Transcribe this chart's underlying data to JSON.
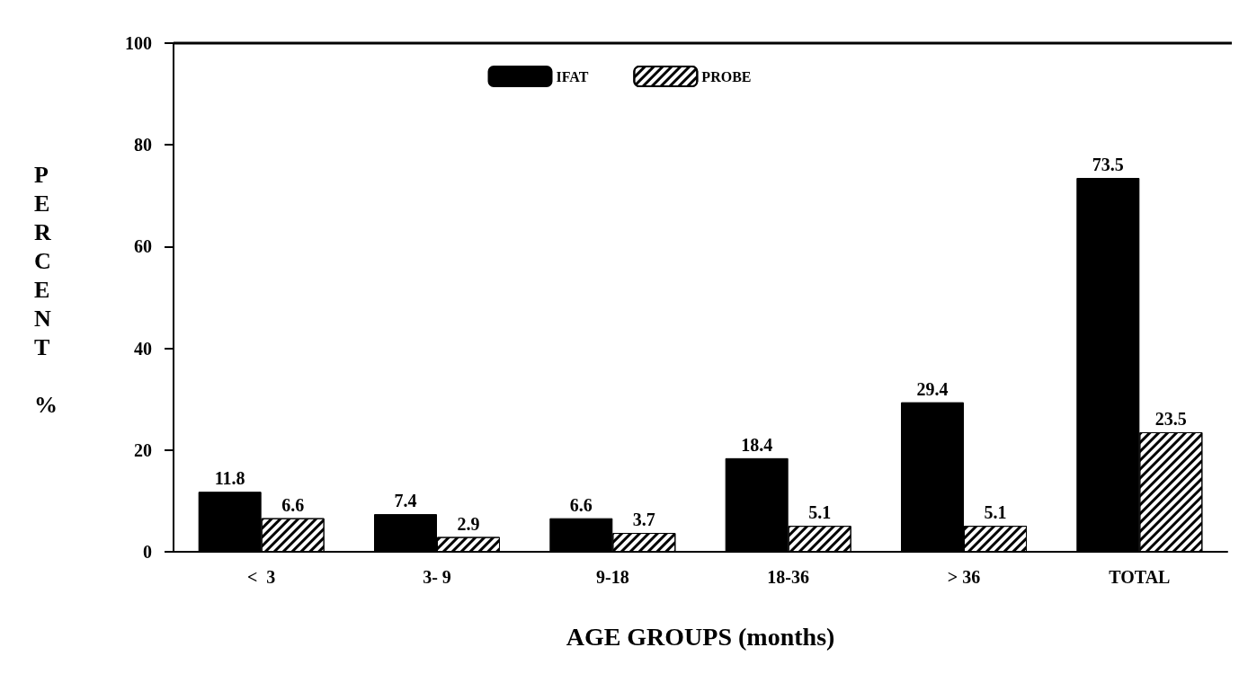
{
  "chart_data": {
    "type": "bar",
    "xlabel": "AGE GROUPS (months)",
    "ylabel": "PERCENT %",
    "categories": [
      "<  3",
      "3- 9",
      "9-18",
      "18-36",
      "> 36",
      "TOTAL"
    ],
    "series": [
      {
        "name": "IFAT",
        "color": "#000000",
        "values": [
          11.8,
          7.4,
          6.6,
          18.4,
          29.4,
          73.5
        ]
      },
      {
        "name": "PROBE",
        "color": "#ffffff",
        "values": [
          6.6,
          2.9,
          3.7,
          5.1,
          5.1,
          23.5
        ]
      }
    ],
    "ylim": [
      0,
      100
    ],
    "yticks": [
      0,
      20,
      40,
      60,
      80,
      100
    ],
    "grid": false,
    "legend": "top",
    "data_labels": true
  }
}
